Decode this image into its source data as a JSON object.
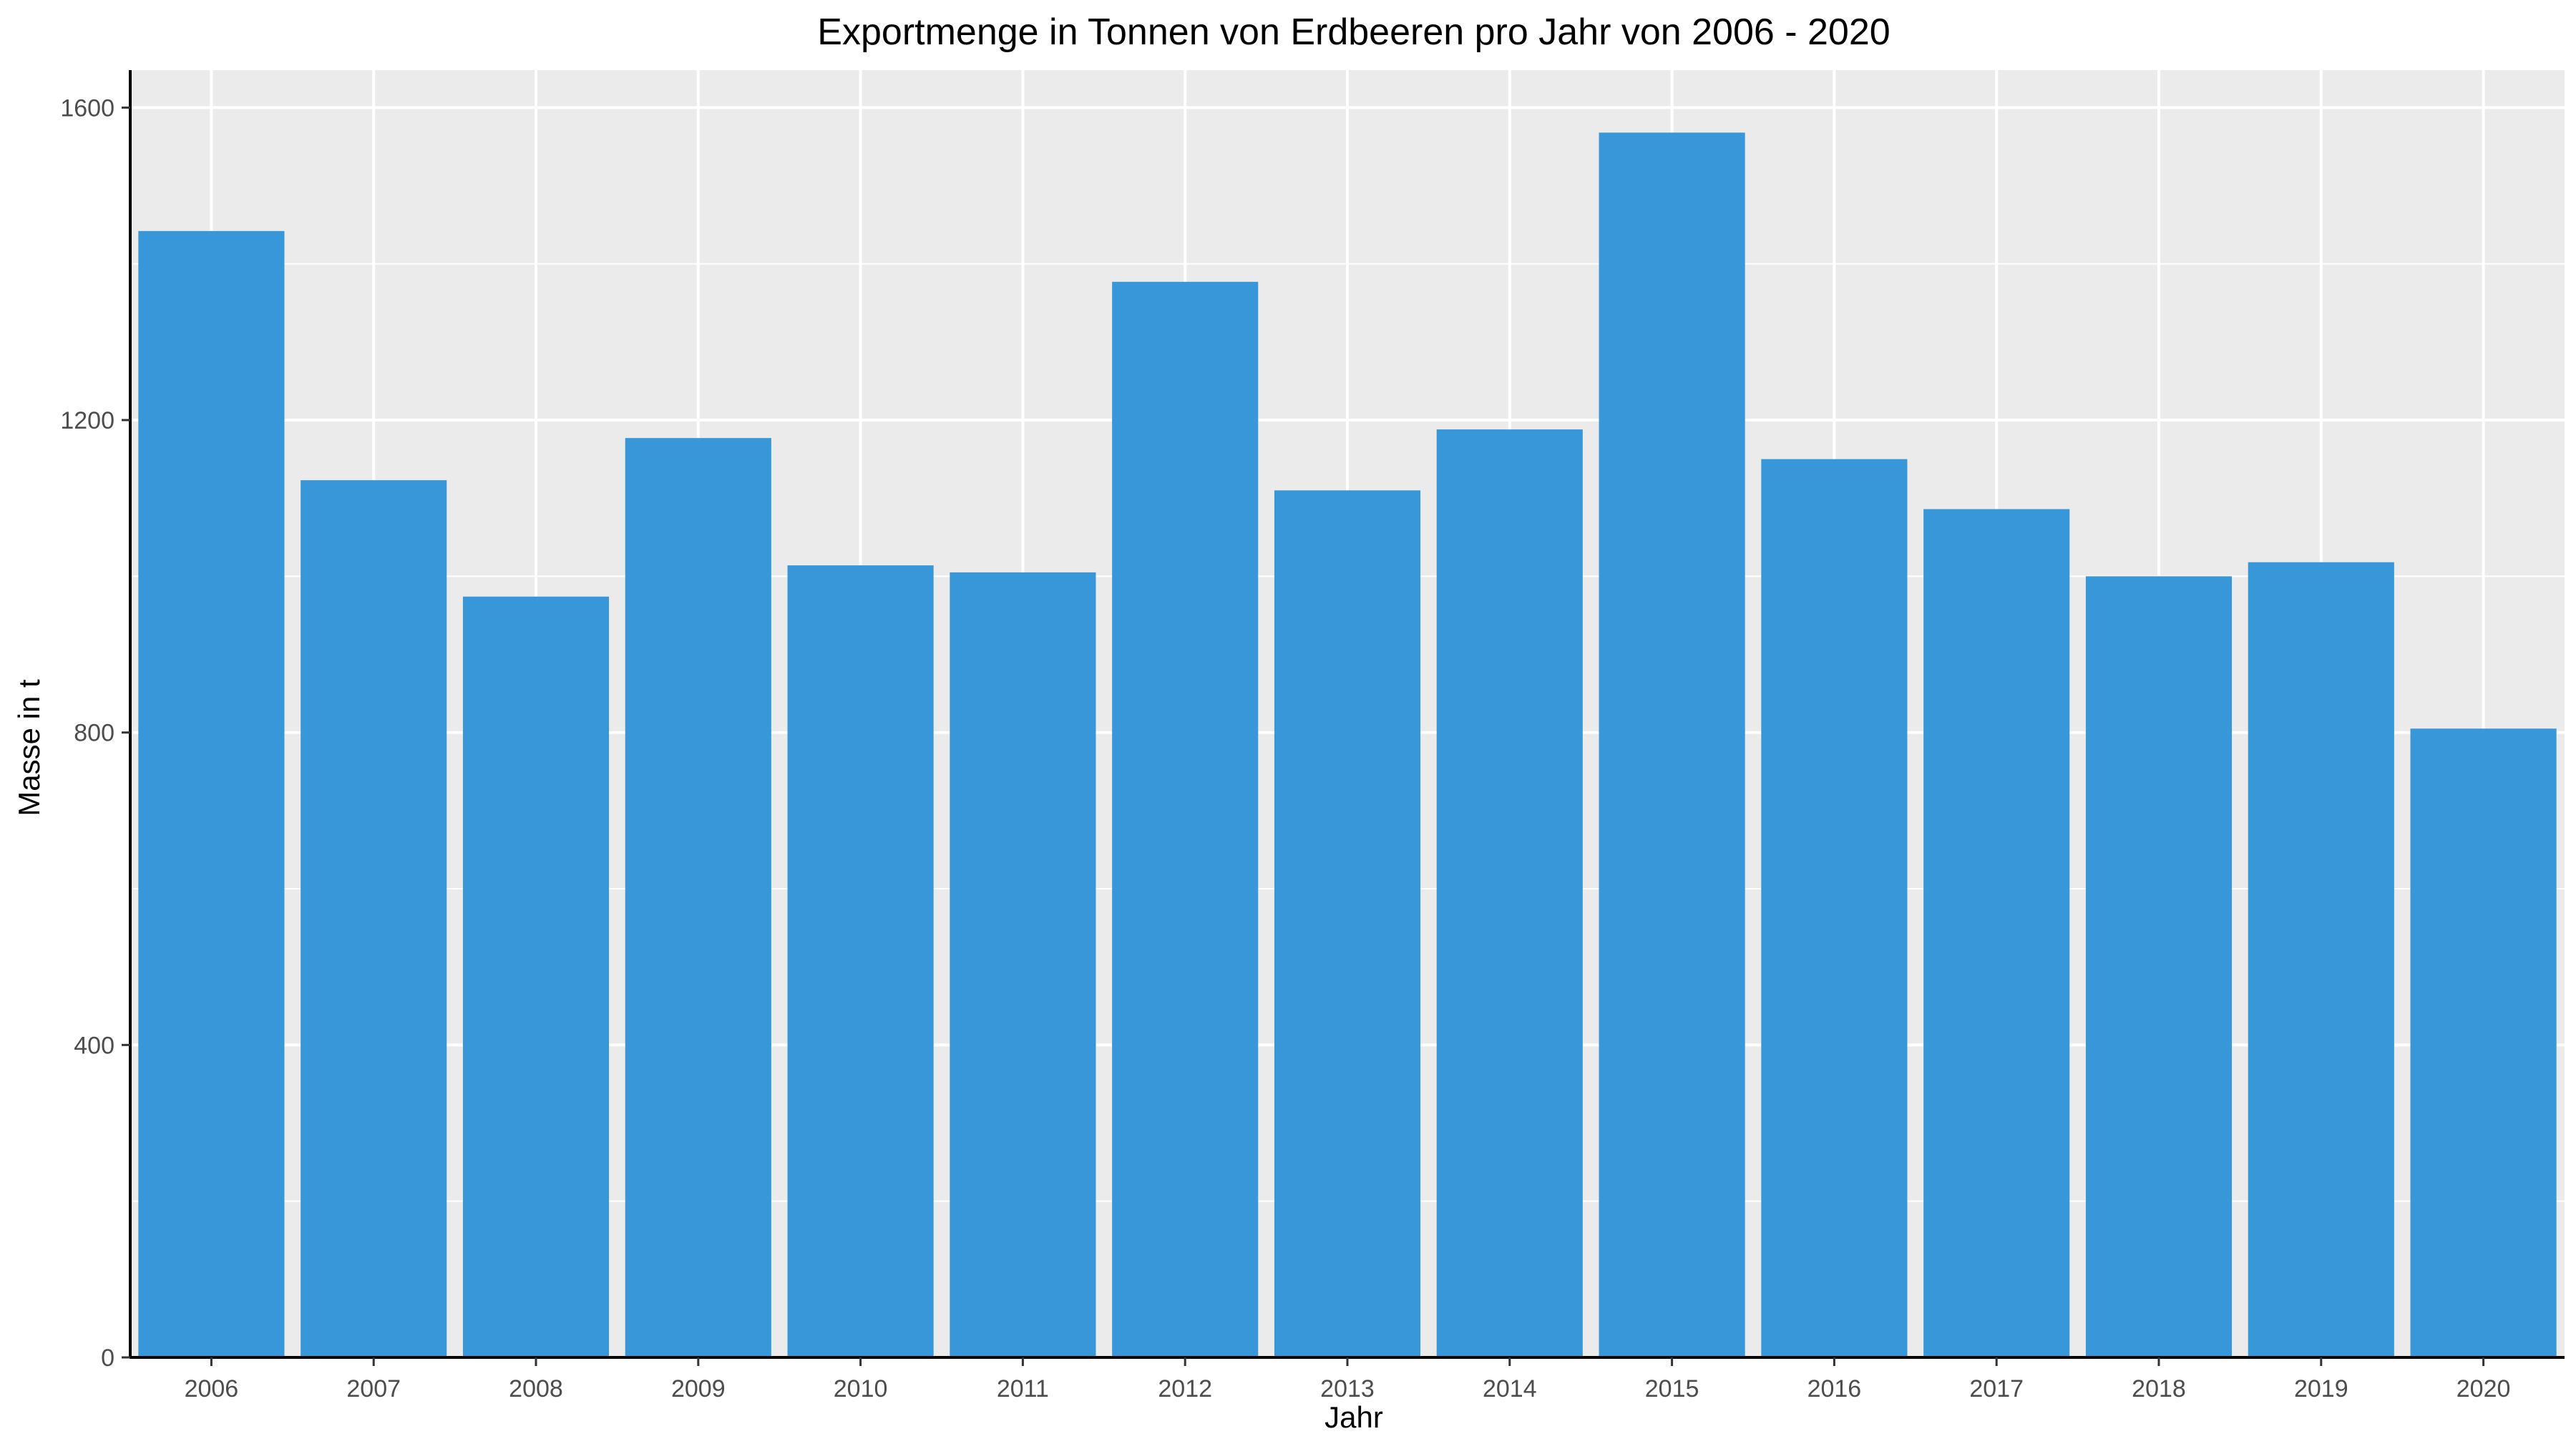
{
  "chart_data": {
    "type": "bar",
    "title": "Exportmenge in Tonnen von Erdbeeren pro Jahr von 2006 - 2020",
    "xlabel": "Jahr",
    "ylabel": "Masse in t",
    "categories": [
      "2006",
      "2007",
      "2008",
      "2009",
      "2010",
      "2011",
      "2012",
      "2013",
      "2014",
      "2015",
      "2016",
      "2017",
      "2018",
      "2019",
      "2020"
    ],
    "values": [
      1442,
      1123,
      974,
      1177,
      1014,
      1005,
      1377,
      1110,
      1188,
      1568,
      1150,
      1086,
      1000,
      1018,
      805
    ],
    "ylim": [
      0,
      1648
    ],
    "yticks": [
      0,
      400,
      800,
      1200,
      1600
    ],
    "ytick_labels": [
      "0",
      "400",
      "800",
      "1200",
      "1600"
    ],
    "grid": true,
    "bar_color": "#3797d9",
    "panel_background": "#ebebeb",
    "grid_color": "#ffffff"
  }
}
